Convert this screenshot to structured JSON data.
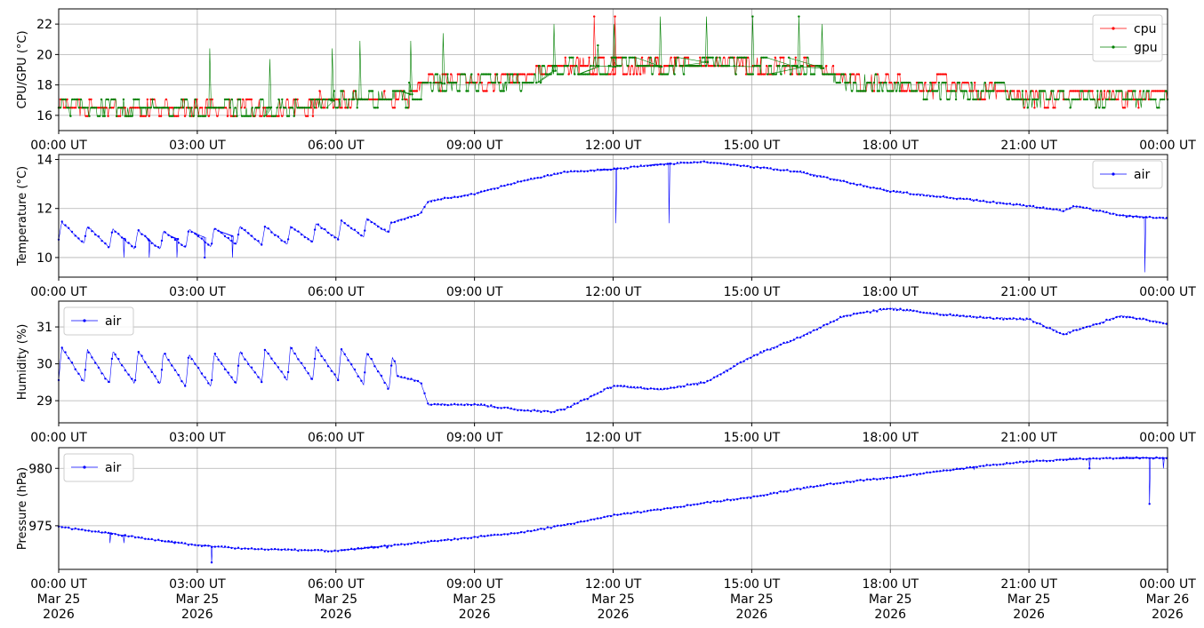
{
  "x_ticks": [
    "00:00 UT",
    "03:00 UT",
    "06:00 UT",
    "09:00 UT",
    "12:00 UT",
    "15:00 UT",
    "18:00 UT",
    "21:00 UT",
    "00:00 UT"
  ],
  "x_date_lines": [
    "Mar 25",
    "Mar 25",
    "Mar 25",
    "Mar 25",
    "Mar 25",
    "Mar 25",
    "Mar 25",
    "Mar 25",
    "Mar 26"
  ],
  "x_year_lines": [
    "2026",
    "2026",
    "2026",
    "2026",
    "2026",
    "2026",
    "2026",
    "2026",
    "2026"
  ],
  "colors": {
    "cpu": "#ff0000",
    "gpu": "#008000",
    "air": "#0000ff",
    "grid": "#b0b0b0"
  },
  "chart_data": [
    {
      "type": "line",
      "ylabel": "CPU/GPU (°C)",
      "ylim": [
        15,
        23
      ],
      "yticks": [
        16,
        18,
        20,
        22
      ],
      "grid": true,
      "legend_placement": "upper-right",
      "x": [
        "2026-03-25 00:00",
        "2026-03-25 01:30",
        "2026-03-25 03:00",
        "2026-03-25 04:30",
        "2026-03-25 06:00",
        "2026-03-25 07:30",
        "2026-03-25 08:00",
        "2026-03-25 09:00",
        "2026-03-25 10:00",
        "2026-03-25 11:00",
        "2026-03-25 12:00",
        "2026-03-25 13:00",
        "2026-03-25 14:00",
        "2026-03-25 15:00",
        "2026-03-25 16:30",
        "2026-03-25 17:00",
        "2026-03-25 18:00",
        "2026-03-25 19:30",
        "2026-03-25 21:00",
        "2026-03-25 22:30",
        "2026-03-26 00:00"
      ],
      "series": [
        {
          "name": "cpu",
          "values": [
            16.5,
            16.3,
            16.4,
            16.4,
            16.9,
            17.1,
            18.2,
            18.2,
            18.4,
            19.3,
            19.3,
            19.3,
            19.7,
            19.3,
            19.2,
            18.2,
            18.0,
            17.8,
            17.3,
            17.2,
            17.3
          ]
        },
        {
          "name": "gpu",
          "values": [
            16.6,
            16.4,
            16.5,
            16.5,
            17.0,
            17.2,
            18.1,
            18.1,
            18.3,
            19.2,
            19.2,
            19.2,
            19.5,
            19.2,
            19.1,
            18.1,
            17.9,
            17.6,
            17.2,
            17.1,
            17.2
          ]
        }
      ],
      "spikes": {
        "cpu": [
          22.5,
          22.5
        ],
        "gpu": [
          20.4,
          19.7,
          20.4,
          20.9,
          20.9,
          21.4,
          22.0,
          20.6,
          22.0,
          22.5,
          22.5,
          22.5,
          22.5,
          22.0
        ]
      }
    },
    {
      "type": "line",
      "ylabel": "Temperature (°C)",
      "ylim": [
        9.2,
        14.2
      ],
      "yticks": [
        10,
        12,
        14
      ],
      "grid": true,
      "legend_placement": "upper-right",
      "x": [
        "2026-03-25 00:00",
        "2026-03-25 01:00",
        "2026-03-25 02:00",
        "2026-03-25 03:00",
        "2026-03-25 04:00",
        "2026-03-25 05:00",
        "2026-03-25 06:00",
        "2026-03-25 07:00",
        "2026-03-25 07:50",
        "2026-03-25 08:00",
        "2026-03-25 09:00",
        "2026-03-25 10:00",
        "2026-03-25 11:00",
        "2026-03-25 12:00",
        "2026-03-25 13:00",
        "2026-03-25 14:00",
        "2026-03-25 15:00",
        "2026-03-25 16:00",
        "2026-03-25 17:00",
        "2026-03-25 18:00",
        "2026-03-25 19:00",
        "2026-03-25 20:00",
        "2026-03-25 21:00",
        "2026-03-25 21:45",
        "2026-03-25 22:00",
        "2026-03-25 23:00",
        "2026-03-26 00:00"
      ],
      "series": [
        {
          "name": "air",
          "values": [
            11.1,
            10.8,
            10.7,
            10.8,
            10.9,
            10.9,
            11.1,
            11.3,
            11.8,
            12.3,
            12.6,
            13.1,
            13.5,
            13.6,
            13.8,
            13.9,
            13.7,
            13.5,
            13.1,
            12.7,
            12.5,
            12.3,
            12.1,
            11.9,
            12.1,
            11.7,
            11.6
          ]
        }
      ],
      "dips": [
        10.0,
        10.0,
        10.0,
        10.0,
        10.0,
        11.4,
        11.4,
        9.4
      ]
    },
    {
      "type": "line",
      "ylabel": "Humidity (%)",
      "ylim": [
        28.4,
        31.7
      ],
      "yticks": [
        29,
        30,
        31
      ],
      "grid": true,
      "legend_placement": "upper-left",
      "x": [
        "2026-03-25 00:00",
        "2026-03-25 01:00",
        "2026-03-25 02:00",
        "2026-03-25 03:00",
        "2026-03-25 04:00",
        "2026-03-25 05:00",
        "2026-03-25 06:00",
        "2026-03-25 07:00",
        "2026-03-25 07:50",
        "2026-03-25 08:00",
        "2026-03-25 09:00",
        "2026-03-25 10:00",
        "2026-03-25 10:40",
        "2026-03-25 11:00",
        "2026-03-25 12:00",
        "2026-03-25 13:00",
        "2026-03-25 14:00",
        "2026-03-25 15:00",
        "2026-03-25 16:00",
        "2026-03-25 17:00",
        "2026-03-25 18:00",
        "2026-03-25 19:00",
        "2026-03-25 20:00",
        "2026-03-25 21:00",
        "2026-03-25 21:45",
        "2026-03-25 23:00",
        "2026-03-26 00:00"
      ],
      "series": [
        {
          "name": "air",
          "values": [
            30.0,
            29.9,
            29.9,
            29.8,
            29.9,
            30.0,
            30.0,
            29.8,
            29.5,
            28.9,
            28.9,
            28.75,
            28.7,
            28.8,
            29.4,
            29.3,
            29.5,
            30.2,
            30.7,
            31.3,
            31.5,
            31.35,
            31.25,
            31.2,
            30.8,
            31.3,
            31.1
          ]
        }
      ]
    },
    {
      "type": "line",
      "ylabel": "Pressure (hPa)",
      "ylim": [
        971.2,
        981.8
      ],
      "yticks": [
        975,
        980
      ],
      "grid": true,
      "legend_placement": "upper-left",
      "x": [
        "2026-03-25 00:00",
        "2026-03-25 01:00",
        "2026-03-25 02:00",
        "2026-03-25 03:00",
        "2026-03-25 04:00",
        "2026-03-25 05:00",
        "2026-03-25 06:00",
        "2026-03-25 07:00",
        "2026-03-25 08:00",
        "2026-03-25 09:00",
        "2026-03-25 10:00",
        "2026-03-25 11:00",
        "2026-03-25 12:00",
        "2026-03-25 13:00",
        "2026-03-25 14:00",
        "2026-03-25 15:00",
        "2026-03-25 16:00",
        "2026-03-25 17:00",
        "2026-03-25 18:00",
        "2026-03-25 19:00",
        "2026-03-25 20:00",
        "2026-03-25 21:00",
        "2026-03-25 22:00",
        "2026-03-25 23:00",
        "2026-03-26 00:00"
      ],
      "series": [
        {
          "name": "air",
          "values": [
            974.9,
            974.4,
            973.8,
            973.3,
            973.0,
            972.9,
            972.8,
            973.2,
            973.6,
            974.0,
            974.4,
            975.1,
            975.9,
            976.4,
            977.0,
            977.5,
            978.2,
            978.8,
            979.2,
            979.7,
            980.2,
            980.6,
            980.8,
            980.9,
            980.9
          ]
        }
      ],
      "dips": [
        973.5,
        973.5,
        973.5,
        971.8,
        973.0,
        973.0,
        973.1,
        979.9,
        980.0,
        976.9,
        980.0
      ]
    }
  ]
}
